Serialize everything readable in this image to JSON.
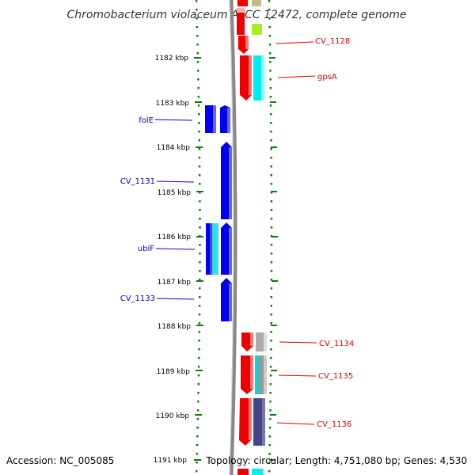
{
  "title": "Chromobacterium violaceum ATCC 12472, complete genome",
  "footer": {
    "accession": "Accession: NC_005085",
    "summary": "Topology: circular; Length: 4,751,080 bp; Genes: 4,530"
  },
  "ticks": [
    "1182 kbp",
    "1183 kbp",
    "1184 kbp",
    "1185 kbp",
    "1186 kbp",
    "1187 kbp",
    "1188 kbp",
    "1189 kbp",
    "1190 kbp",
    "1191 kbp"
  ],
  "colors": {
    "forward_cds": "#0000ee",
    "reverse_cds": "#ee0000",
    "forward_label": "#0000cc",
    "reverse_label": "#dd0000",
    "backbone": "#888888",
    "tick": "#117711"
  },
  "forward_genes": [
    {
      "name": "folE"
    },
    {
      "name": "CV_1131"
    },
    {
      "name": "ubiF"
    },
    {
      "name": "CV_1133"
    }
  ],
  "reverse_genes": [
    {
      "name": "CV_1128"
    },
    {
      "name": "gpsA"
    },
    {
      "name": "CV_1134"
    },
    {
      "name": "CV_1135"
    },
    {
      "name": "CV_1136"
    }
  ]
}
